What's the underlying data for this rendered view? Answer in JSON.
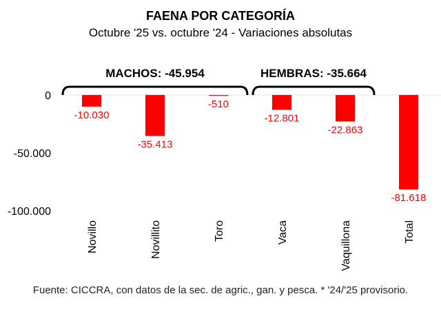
{
  "title": "FAENA POR CATEGORÍA",
  "subtitle": "Octubre '25 vs. octubre '24 - Variaciones absolutas",
  "source": "Fuente: CICCRA, con datos de la sec. de agric., gan. y pesca. * '24/'25 provisorio.",
  "chart_data": {
    "type": "bar",
    "categories": [
      "Novillo",
      "Novillito",
      "Toro",
      "Vaca",
      "Vaquillona",
      "Total"
    ],
    "values": [
      -10030,
      -35413,
      -510,
      -12801,
      -22863,
      -81618
    ],
    "data_labels": [
      "-10.030",
      "-35.413",
      "-510",
      "-12.801",
      "-22.863",
      "-81.618"
    ],
    "ylim": [
      -100000,
      0
    ],
    "yticks": [
      0,
      -50000,
      -100000
    ],
    "ytick_labels": [
      "0",
      "-50.000",
      "-100.000"
    ],
    "bar_color": "#ff0000",
    "label_color": "#ff0000",
    "grid": false,
    "groups": [
      {
        "label": "MACHOS: -45.954",
        "members": [
          "Novillo",
          "Novillito",
          "Toro"
        ]
      },
      {
        "label": "HEMBRAS: -35.664",
        "members": [
          "Vaca",
          "Vaquillona"
        ]
      }
    ]
  }
}
